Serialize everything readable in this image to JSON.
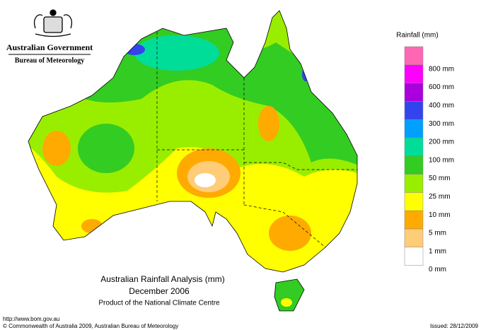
{
  "header": {
    "agency": "Australian Government",
    "bureau": "Bureau of Meteorology"
  },
  "map": {
    "title": "Australian Rainfall Analysis (mm)",
    "period": "December 2006",
    "product": "Product of the National Climate Centre"
  },
  "legend": {
    "title": "Rainfall (mm)",
    "items": [
      {
        "color": "#ff66b3",
        "label": null
      },
      {
        "color": "#ff00ff",
        "label": "800 mm"
      },
      {
        "color": "#aa00dd",
        "label": "600 mm"
      },
      {
        "color": "#3344ee",
        "label": "400 mm"
      },
      {
        "color": "#00a0ff",
        "label": "300 mm"
      },
      {
        "color": "#00dd99",
        "label": "200 mm"
      },
      {
        "color": "#33cc22",
        "label": "100 mm"
      },
      {
        "color": "#99ee00",
        "label": "50 mm"
      },
      {
        "color": "#ffff00",
        "label": "25 mm"
      },
      {
        "color": "#ffaa00",
        "label": "10 mm"
      },
      {
        "color": "#ffcc77",
        "label": "5 mm"
      },
      {
        "color": "#ffffff",
        "label": "1 mm"
      }
    ],
    "bottom_label": "0 mm"
  },
  "footer": {
    "url": "http://www.bom.gov.au",
    "copyright": "© Commonwealth of Australia 2009, Australian Bureau of Meteorology",
    "issued": "Issued: 28/12/2009"
  }
}
